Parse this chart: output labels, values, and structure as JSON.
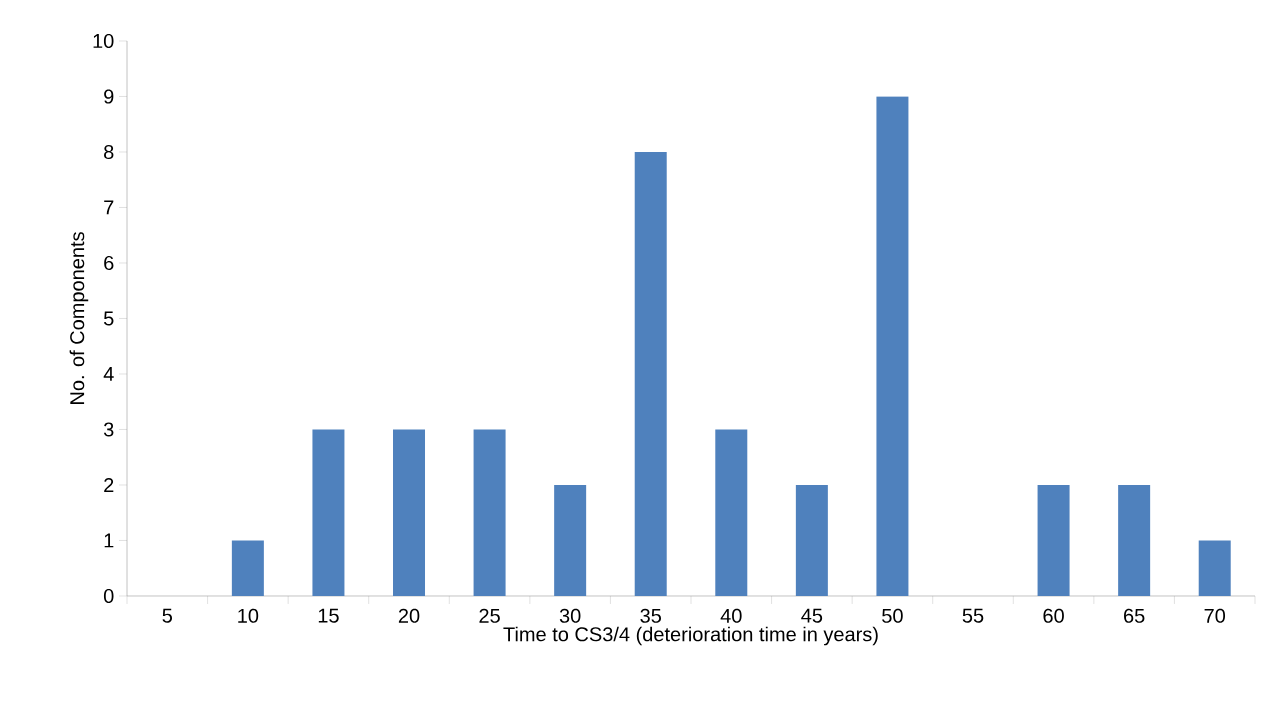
{
  "chart_data": {
    "type": "bar",
    "xlabel": "Time to CS3/4 (deterioration time in years)",
    "ylabel": "No. of Components",
    "categories": [
      "5",
      "10",
      "15",
      "20",
      "25",
      "30",
      "35",
      "40",
      "45",
      "50",
      "55",
      "60",
      "65",
      "70"
    ],
    "values": [
      0,
      1,
      3,
      3,
      3,
      2,
      8,
      3,
      2,
      9,
      0,
      2,
      2,
      1
    ],
    "color": "#4f81bd",
    "ylim": [
      0,
      10
    ],
    "yticks": [
      0,
      1,
      2,
      3,
      4,
      5,
      6,
      7,
      8,
      9,
      10
    ],
    "grid": false
  }
}
